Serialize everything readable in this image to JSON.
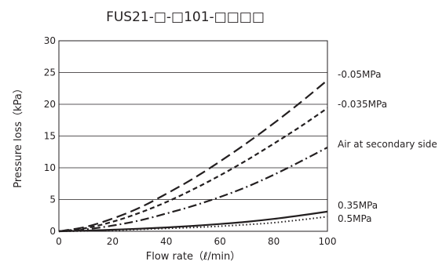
{
  "chart_data": {
    "type": "line",
    "title": "FUS21-□-□101-□□□□",
    "xlabel": "Flow rate（ℓ/min）",
    "ylabel": "Pressure loss（kPa）",
    "xlim": [
      0,
      100
    ],
    "ylim": [
      0,
      30
    ],
    "xticks": [
      0,
      20,
      40,
      60,
      80,
      100
    ],
    "yticks": [
      0,
      5,
      10,
      15,
      20,
      25,
      30
    ],
    "grid": "horizontal",
    "legend": "right of plot, labels at line ends",
    "series": [
      {
        "name": "-0.05MPa",
        "style": "long-dash",
        "x": [
          0,
          10,
          20,
          30,
          40,
          50,
          60,
          70,
          80,
          90,
          100
        ],
        "y": [
          0,
          0.7,
          2.0,
          3.7,
          5.9,
          8.3,
          11.0,
          13.9,
          17.0,
          20.3,
          23.8
        ]
      },
      {
        "name": "-0.035MPa",
        "style": "short-dash",
        "x": [
          0,
          10,
          20,
          30,
          40,
          50,
          60,
          70,
          80,
          90,
          100
        ],
        "y": [
          0,
          0.5,
          1.5,
          2.9,
          4.6,
          6.6,
          8.8,
          11.2,
          13.8,
          16.5,
          19.4
        ]
      },
      {
        "name": "Air at secondary side",
        "style": "dash-dot",
        "x": [
          0,
          10,
          20,
          30,
          40,
          50,
          60,
          70,
          80,
          90,
          100
        ],
        "y": [
          0,
          0.3,
          0.9,
          1.7,
          2.8,
          4.0,
          5.4,
          7.0,
          8.9,
          11.0,
          13.2
        ]
      },
      {
        "name": "0.35MPa",
        "style": "solid",
        "x": [
          0,
          10,
          20,
          30,
          40,
          50,
          60,
          70,
          80,
          90,
          100
        ],
        "y": [
          0,
          0.1,
          0.25,
          0.4,
          0.6,
          0.85,
          1.15,
          1.5,
          1.95,
          2.5,
          3.1
        ]
      },
      {
        "name": "0.5MPa",
        "style": "dotted",
        "x": [
          0,
          10,
          20,
          30,
          40,
          50,
          60,
          70,
          80,
          90,
          100
        ],
        "y": [
          0,
          0.05,
          0.15,
          0.3,
          0.45,
          0.6,
          0.8,
          1.05,
          1.35,
          1.8,
          2.3
        ]
      }
    ]
  }
}
